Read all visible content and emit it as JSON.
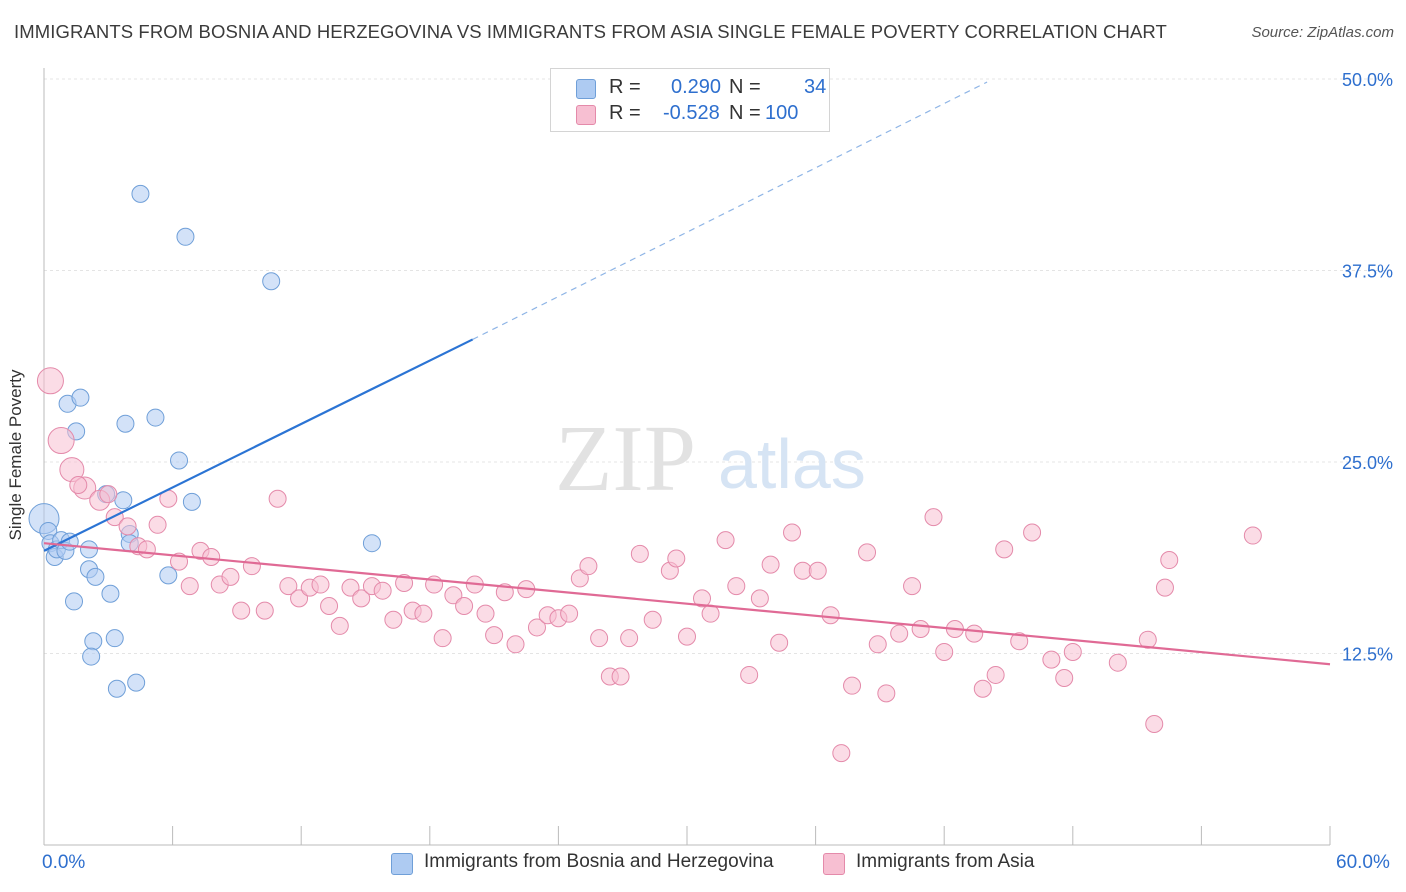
{
  "title": "IMMIGRANTS FROM BOSNIA AND HERZEGOVINA VS IMMIGRANTS FROM ASIA SINGLE FEMALE POVERTY CORRELATION CHART",
  "source": "Source: ZipAtlas.com",
  "watermark": {
    "zip": "ZIP",
    "atlas": "atlas"
  },
  "legend": {
    "r_label": "R =",
    "n_label": "N =",
    "rows": [
      {
        "r": "0.290",
        "n": "34",
        "color": "#aecbf2",
        "border": "#6f9fd8"
      },
      {
        "r": "-0.528",
        "n": "100",
        "color": "#f7bfd2",
        "border": "#e48aaa"
      }
    ]
  },
  "chart_data": {
    "type": "scatter",
    "title": "IMMIGRANTS FROM BOSNIA AND HERZEGOVINA VS IMMIGRANTS FROM ASIA SINGLE FEMALE POVERTY CORRELATION CHART",
    "xlabel": "",
    "ylabel": "Single Female Poverty",
    "xlim": [
      0,
      60
    ],
    "ylim": [
      0,
      50
    ],
    "x_tick_labels": [
      "0.0%",
      "60.0%"
    ],
    "y_tick_labels": [
      "12.5%",
      "25.0%",
      "37.5%",
      "50.0%"
    ],
    "y_ticks": [
      12.5,
      25.0,
      37.5,
      50.0
    ],
    "grid": true,
    "legend_position": "top-center",
    "series": [
      {
        "name": "Immigrants from Bosnia and Herzegovina",
        "color": "#aecbf2",
        "stroke": "#6f9fd8",
        "trend_color": "#2b74d4",
        "trend": {
          "x0": 0.0,
          "y0": 19.2,
          "x1": 20.0,
          "y1": 33.0,
          "dash_to_x": 44.0,
          "dash_to_y": 49.8
        },
        "points": [
          [
            0.0,
            21.3
          ],
          [
            0.2,
            20.5
          ],
          [
            0.3,
            19.7
          ],
          [
            0.5,
            18.8
          ],
          [
            0.6,
            19.3
          ],
          [
            0.8,
            19.9
          ],
          [
            1.0,
            19.2
          ],
          [
            1.2,
            19.8
          ],
          [
            1.1,
            28.8
          ],
          [
            1.7,
            29.2
          ],
          [
            1.5,
            27.0
          ],
          [
            1.4,
            15.9
          ],
          [
            2.1,
            19.3
          ],
          [
            2.1,
            18.0
          ],
          [
            2.4,
            17.5
          ],
          [
            2.3,
            13.3
          ],
          [
            2.2,
            12.3
          ],
          [
            2.9,
            22.9
          ],
          [
            3.1,
            16.4
          ],
          [
            3.3,
            13.5
          ],
          [
            3.4,
            10.2
          ],
          [
            3.7,
            22.5
          ],
          [
            3.8,
            27.5
          ],
          [
            4.0,
            20.3
          ],
          [
            4.0,
            19.7
          ],
          [
            4.3,
            10.6
          ],
          [
            4.5,
            42.5
          ],
          [
            5.2,
            27.9
          ],
          [
            5.8,
            17.6
          ],
          [
            6.3,
            25.1
          ],
          [
            6.6,
            39.7
          ],
          [
            6.9,
            22.4
          ],
          [
            10.6,
            36.8
          ],
          [
            15.3,
            19.7
          ]
        ]
      },
      {
        "name": "Immigrants from Asia",
        "color": "#f7bfd2",
        "stroke": "#e48aaa",
        "trend_color": "#e06a95",
        "trend": {
          "x0": 0.0,
          "y0": 19.7,
          "x1": 60.0,
          "y1": 11.8
        },
        "points": [
          [
            0.3,
            30.3
          ],
          [
            0.8,
            26.4
          ],
          [
            1.3,
            24.5
          ],
          [
            1.9,
            23.3
          ],
          [
            2.6,
            22.5
          ],
          [
            3.3,
            21.4
          ],
          [
            3.9,
            20.8
          ],
          [
            4.4,
            19.5
          ],
          [
            4.8,
            19.3
          ],
          [
            5.3,
            20.9
          ],
          [
            5.8,
            22.6
          ],
          [
            6.3,
            18.5
          ],
          [
            6.8,
            16.9
          ],
          [
            7.3,
            19.2
          ],
          [
            7.8,
            18.8
          ],
          [
            8.2,
            17.0
          ],
          [
            8.7,
            17.5
          ],
          [
            9.2,
            15.3
          ],
          [
            9.7,
            18.2
          ],
          [
            10.3,
            15.3
          ],
          [
            10.9,
            22.6
          ],
          [
            11.4,
            16.9
          ],
          [
            11.9,
            16.1
          ],
          [
            12.4,
            16.8
          ],
          [
            12.9,
            17.0
          ],
          [
            13.3,
            15.6
          ],
          [
            13.8,
            14.3
          ],
          [
            14.3,
            16.8
          ],
          [
            14.8,
            16.1
          ],
          [
            15.3,
            16.9
          ],
          [
            15.8,
            16.6
          ],
          [
            16.3,
            14.7
          ],
          [
            16.8,
            17.1
          ],
          [
            17.2,
            15.3
          ],
          [
            17.7,
            15.1
          ],
          [
            18.2,
            17.0
          ],
          [
            18.6,
            13.5
          ],
          [
            19.1,
            16.3
          ],
          [
            19.6,
            15.6
          ],
          [
            20.1,
            17.0
          ],
          [
            20.6,
            15.1
          ],
          [
            21.0,
            13.7
          ],
          [
            21.5,
            16.5
          ],
          [
            22.0,
            13.1
          ],
          [
            22.5,
            16.7
          ],
          [
            23.0,
            14.2
          ],
          [
            23.5,
            15.0
          ],
          [
            24.0,
            14.8
          ],
          [
            24.5,
            15.1
          ],
          [
            25.0,
            17.4
          ],
          [
            25.4,
            18.2
          ],
          [
            25.9,
            13.5
          ],
          [
            26.4,
            11.0
          ],
          [
            26.9,
            11.0
          ],
          [
            27.3,
            13.5
          ],
          [
            27.8,
            19.0
          ],
          [
            28.4,
            14.7
          ],
          [
            29.2,
            17.9
          ],
          [
            29.5,
            18.7
          ],
          [
            30.0,
            13.6
          ],
          [
            30.7,
            16.1
          ],
          [
            31.1,
            15.1
          ],
          [
            31.8,
            19.9
          ],
          [
            32.3,
            16.9
          ],
          [
            32.9,
            11.1
          ],
          [
            33.4,
            16.1
          ],
          [
            33.9,
            18.3
          ],
          [
            34.3,
            13.2
          ],
          [
            34.9,
            20.4
          ],
          [
            35.4,
            17.9
          ],
          [
            36.1,
            17.9
          ],
          [
            36.7,
            15.0
          ],
          [
            37.2,
            6.0
          ],
          [
            37.7,
            10.4
          ],
          [
            38.4,
            19.1
          ],
          [
            38.9,
            13.1
          ],
          [
            39.3,
            9.9
          ],
          [
            39.9,
            13.8
          ],
          [
            40.5,
            16.9
          ],
          [
            40.9,
            14.1
          ],
          [
            41.5,
            21.4
          ],
          [
            42.0,
            12.6
          ],
          [
            42.5,
            14.1
          ],
          [
            43.4,
            13.8
          ],
          [
            43.8,
            10.2
          ],
          [
            44.4,
            11.1
          ],
          [
            44.8,
            19.3
          ],
          [
            45.5,
            13.3
          ],
          [
            46.1,
            20.4
          ],
          [
            47.0,
            12.1
          ],
          [
            47.6,
            10.9
          ],
          [
            48.0,
            12.6
          ],
          [
            50.1,
            11.9
          ],
          [
            51.5,
            13.4
          ],
          [
            51.8,
            7.9
          ],
          [
            52.3,
            16.8
          ],
          [
            52.5,
            18.6
          ],
          [
            56.4,
            20.2
          ],
          [
            1.6,
            23.5
          ],
          [
            3.0,
            22.9
          ]
        ]
      }
    ]
  }
}
